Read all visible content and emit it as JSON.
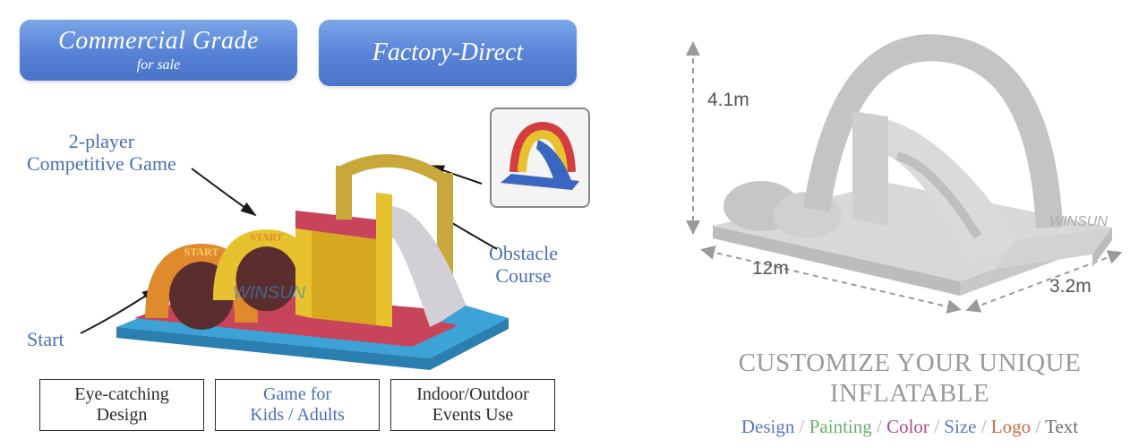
{
  "pills": {
    "p1_line1": "Commercial Grade",
    "p1_line2": "for sale",
    "p2_line1": "Factory-Direct",
    "bg_gradient": [
      "#7ba7e8",
      "#5a84d8",
      "#4a74c8"
    ],
    "text_color": "#ffffff"
  },
  "annotations": {
    "two_player_l1": "2-player",
    "two_player_l2": "Competitive Game",
    "obstacle_l1": "Obstacle",
    "obstacle_l2": "Course",
    "start": "Start",
    "color": "#4a6fb8",
    "arrow_color": "#1a1a1a"
  },
  "feature_boxes": {
    "box1_l1": "Eye-catching",
    "box1_l2": "Design",
    "box2_l1": "Game for",
    "box2_l2": "Kids / Adults",
    "box3_l1": "Indoor/Outdoor",
    "box3_l2": "Events Use",
    "border_color": "#2b2b2b",
    "highlight_color": "#4a6fb8"
  },
  "product_main": {
    "colors": {
      "base": "#3da2d6",
      "floor": "#c8445a",
      "walls": "#e8c22e",
      "arch_front": "#e08a2e",
      "slide": "#d2cfd6"
    },
    "start_arch_text": "START",
    "watermark": "WINSUN"
  },
  "product_inset": {
    "slide_colors": [
      "#d43d3d",
      "#e8c22e",
      "#3a66c0"
    ]
  },
  "right_panel": {
    "title_l1": "CUSTOMIZE YOUR UNIQUE",
    "title_l2": "INFLATABLE",
    "title_color": "#9a9a9a",
    "sub_items": [
      {
        "text": "Design",
        "color": "#5a78c8"
      },
      {
        "text": "Painting",
        "color": "#6cb06e"
      },
      {
        "text": "Color",
        "color": "#b44a8a"
      },
      {
        "text": "Size",
        "color": "#5a78c8"
      },
      {
        "text": "Logo",
        "color": "#d06a4a"
      },
      {
        "text": "Text",
        "color": "#6a6a6a"
      }
    ],
    "sub_separator": " / ",
    "sub_separator_color": "#b0b0b0",
    "dimensions": {
      "height": "4.1m",
      "length": "12m",
      "width": "3.2m",
      "label_color": "#555"
    },
    "render_color": "#cfcfcf",
    "arrow_color": "#9a9a9a"
  }
}
